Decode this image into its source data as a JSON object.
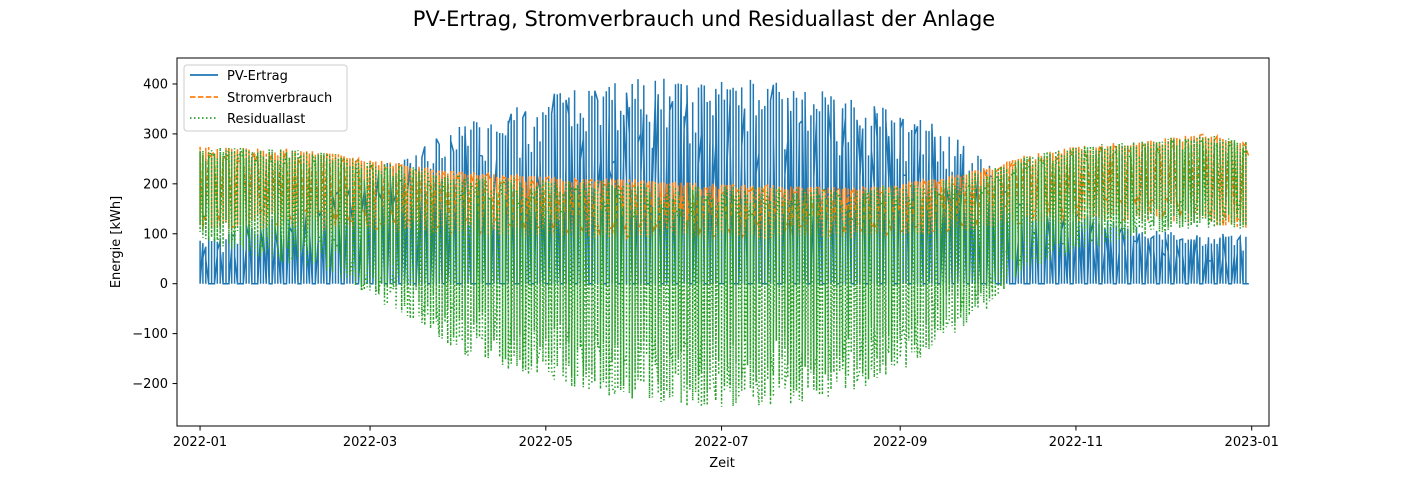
{
  "chart_data": {
    "type": "line",
    "title": "PV-Ertrag, Stromverbrauch und Residuallast der Anlage",
    "xlabel": "Zeit",
    "ylabel": "Energie [kWh]",
    "xlim": [
      "2021-12-24",
      "2023-01-07"
    ],
    "ylim": [
      -285,
      452
    ],
    "x_ticks": [
      "2022-01",
      "2022-03",
      "2022-05",
      "2022-07",
      "2022-09",
      "2022-11",
      "2023-01"
    ],
    "y_ticks": [
      -200,
      -100,
      0,
      100,
      200,
      300,
      400
    ],
    "grid": false,
    "legend_position": "top-left",
    "series": [
      {
        "name": "PV-Ertrag",
        "color": "#1f77b4",
        "style": "solid",
        "x": [
          "2022-01-01",
          "2022-01-15",
          "2022-02-01",
          "2022-02-15",
          "2022-03-01",
          "2022-03-15",
          "2022-04-01",
          "2022-04-15",
          "2022-05-01",
          "2022-05-15",
          "2022-06-01",
          "2022-06-15",
          "2022-07-01",
          "2022-07-15",
          "2022-08-01",
          "2022-08-15",
          "2022-09-01",
          "2022-09-15",
          "2022-10-01",
          "2022-10-15",
          "2022-11-01",
          "2022-11-15",
          "2022-12-01",
          "2022-12-15",
          "2022-12-31"
        ],
        "min": [
          0,
          0,
          0,
          0,
          0,
          0,
          0,
          0,
          0,
          0,
          0,
          0,
          0,
          0,
          0,
          0,
          0,
          0,
          0,
          0,
          0,
          0,
          0,
          0,
          0
        ],
        "max": [
          95,
          115,
          140,
          185,
          230,
          258,
          320,
          335,
          380,
          395,
          415,
          418,
          405,
          410,
          395,
          370,
          345,
          318,
          250,
          165,
          150,
          125,
          110,
          95,
          105
        ]
      },
      {
        "name": "Stromverbrauch",
        "color": "#ff7f0e",
        "style": "dashed",
        "x": [
          "2022-01-01",
          "2022-01-15",
          "2022-02-01",
          "2022-02-15",
          "2022-03-01",
          "2022-03-15",
          "2022-04-01",
          "2022-04-15",
          "2022-05-01",
          "2022-05-15",
          "2022-06-01",
          "2022-06-15",
          "2022-07-01",
          "2022-07-15",
          "2022-08-01",
          "2022-08-15",
          "2022-09-01",
          "2022-09-15",
          "2022-10-01",
          "2022-10-15",
          "2022-11-01",
          "2022-11-15",
          "2022-12-01",
          "2022-12-15",
          "2022-12-31"
        ],
        "min": [
          105,
          110,
          110,
          105,
          105,
          100,
          98,
          95,
          90,
          90,
          90,
          90,
          88,
          90,
          90,
          92,
          95,
          100,
          110,
          120,
          120,
          125,
          125,
          120,
          110
        ],
        "max": [
          275,
          272,
          270,
          262,
          250,
          238,
          225,
          220,
          215,
          212,
          210,
          205,
          200,
          198,
          195,
          195,
          200,
          212,
          232,
          258,
          275,
          282,
          290,
          300,
          285
        ]
      },
      {
        "name": "Residuallast",
        "color": "#2ca02c",
        "style": "dotted",
        "x": [
          "2022-01-01",
          "2022-01-15",
          "2022-02-01",
          "2022-02-15",
          "2022-03-01",
          "2022-03-15",
          "2022-04-01",
          "2022-04-15",
          "2022-05-01",
          "2022-05-15",
          "2022-06-01",
          "2022-06-15",
          "2022-07-01",
          "2022-07-15",
          "2022-08-01",
          "2022-08-15",
          "2022-09-01",
          "2022-09-15",
          "2022-10-01",
          "2022-10-15",
          "2022-11-01",
          "2022-11-15",
          "2022-12-01",
          "2022-12-15",
          "2022-12-31"
        ],
        "min": [
          95,
          60,
          40,
          25,
          -25,
          -70,
          -140,
          -170,
          -190,
          -215,
          -235,
          -245,
          -250,
          -245,
          -240,
          -220,
          -185,
          -120,
          -60,
          30,
          60,
          80,
          100,
          110,
          110
        ],
        "max": [
          275,
          272,
          270,
          262,
          248,
          235,
          220,
          215,
          210,
          208,
          205,
          200,
          198,
          195,
          192,
          192,
          198,
          210,
          230,
          258,
          275,
          282,
          290,
          300,
          285
        ]
      }
    ]
  }
}
